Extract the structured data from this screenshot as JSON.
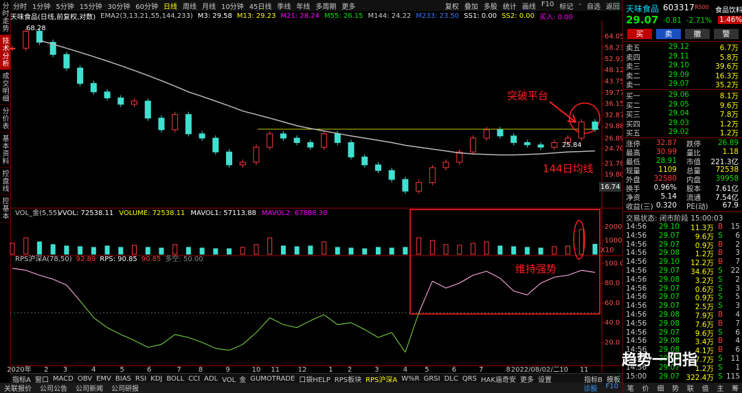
{
  "left_tabs": {
    "items": [
      "分时走势",
      "技术分析",
      "成交明细",
      "分价表",
      "基本资料",
      "控盘线",
      "控基本"
    ],
    "active": 1
  },
  "toolbar": {
    "periods": [
      "分时",
      "1分钟",
      "5分钟",
      "15分钟",
      "30分钟",
      "60分钟",
      "日线",
      "周线",
      "月线",
      "10分钟",
      "45日线",
      "季线",
      "年线",
      "多周期",
      "更多"
    ],
    "active": 6,
    "tools": [
      "复权",
      "叠加",
      "多股",
      "统计",
      "画线",
      "F10",
      "标记",
      "-",
      "自选",
      "返回"
    ]
  },
  "chart_data": [
    {
      "type": "candlestick",
      "title": "天味食品(日线,前复权,对数)",
      "subtitle": "EMA2(3,13,21,55,144,233)",
      "legend_items": [
        {
          "text": "M3: 29.58",
          "color": "#ffffff"
        },
        {
          "text": "M13: 29.23",
          "color": "#ffff00"
        },
        {
          "text": "M21: 28.24",
          "color": "#ff00ff"
        },
        {
          "text": "M55: 26.15",
          "color": "#00e600"
        },
        {
          "text": "M144: 24.22",
          "color": "#cccccc"
        },
        {
          "text": "M233: 23.50",
          "color": "#3c78ff"
        },
        {
          "text": "SS1: 0.00",
          "color": "#ffffff"
        },
        {
          "text": "SS2: 0.00",
          "color": "#ffff00"
        },
        {
          "text": "买入: 0.00",
          "color": "#ff00ff"
        }
      ],
      "x": [
        0,
        1,
        2,
        3,
        4,
        5,
        6,
        7,
        8,
        9,
        10,
        11,
        12,
        13,
        14,
        15,
        16,
        17,
        18,
        19,
        20,
        21,
        22,
        23,
        24,
        25,
        26,
        27,
        28,
        29,
        30,
        31,
        32,
        33,
        34,
        35,
        36,
        37,
        38,
        39,
        40,
        41,
        42,
        43
      ],
      "xlim": [
        0,
        43
      ],
      "xticks": [
        {
          "value": 0.5,
          "label": "2020年"
        },
        {
          "value": 2.5,
          "label": "2"
        },
        {
          "value": 3.9,
          "label": "3"
        },
        {
          "value": 6,
          "label": "4"
        },
        {
          "value": 8.1,
          "label": "5"
        },
        {
          "value": 10.1,
          "label": "6"
        },
        {
          "value": 12.3,
          "label": "7"
        },
        {
          "value": 13.9,
          "label": "8"
        },
        {
          "value": 15.9,
          "label": "9"
        },
        {
          "value": 18,
          "label": "10"
        },
        {
          "value": 19.4,
          "label": "11"
        },
        {
          "value": 21.4,
          "label": "12"
        },
        {
          "value": 23.5,
          "label": "1"
        },
        {
          "value": 24.9,
          "label": "2"
        },
        {
          "value": 26.9,
          "label": "3"
        },
        {
          "value": 29,
          "label": "4"
        },
        {
          "value": 30.6,
          "label": "5"
        },
        {
          "value": 32.6,
          "label": "6"
        },
        {
          "value": 34.6,
          "label": "7"
        },
        {
          "value": 36.6,
          "label": "8"
        },
        {
          "value": 38.6,
          "label": "2022/08/02/二"
        },
        {
          "value": 40.7,
          "label": "10"
        },
        {
          "value": 42.2,
          "label": "11"
        }
      ],
      "ylim": [
        15.5,
        70
      ],
      "log_scale": true,
      "yticks": [
        64.05,
        58.23,
        52.93,
        48.12,
        43.75,
        39.77,
        36.15,
        32.87,
        29.88,
        26.89,
        {
          "value": 24.7,
          "label": "24.70"
        },
        21.78,
        {
          "value": 19.8,
          "label": "19.80"
        }
      ],
      "up_color": "#ff3c3c",
      "down_color": "#40e0d0",
      "series": [
        {
          "values": [
            58,
            67,
            61,
            55,
            49,
            43,
            40,
            38,
            36,
            37,
            32,
            29,
            33,
            28,
            27,
            24,
            21.5,
            22,
            25,
            28,
            27,
            26,
            25,
            28,
            26,
            23,
            21.5,
            20.5,
            19,
            17.2,
            18.5,
            21,
            22,
            24,
            27,
            29,
            27.5,
            26,
            25.5,
            25,
            26,
            27,
            31,
            29.07
          ]
        },
        {
          "values": [
            null,
            null,
            62,
            60,
            58,
            56,
            54,
            52,
            50,
            48,
            46,
            44,
            42,
            40,
            38.5,
            37,
            35.5,
            34,
            33,
            32,
            31,
            30,
            29.3,
            28.7,
            28.1,
            27.5,
            27,
            26.5,
            26,
            25.4,
            25,
            24.6,
            24.2,
            23.8,
            23.6,
            23.5,
            23.4,
            23.4,
            23.5,
            23.6,
            23.8,
            24,
            24.1,
            24.22
          ],
          "color": "#bbbbbb"
        }
      ],
      "price_labels": [
        68.28,
        25.84,
        16.74
      ],
      "annotations": [
        "突破平台",
        "144日均线",
        "维持强势"
      ]
    },
    {
      "type": "bar",
      "title": "VOL_金(5,55)",
      "legend_items": [
        {
          "text": "VVOL: 72538.11",
          "color": "#ffffff"
        },
        {
          "text": "VOLUME: 72538.11",
          "color": "#ffff00"
        },
        {
          "text": "MAVOL1: 57113.88",
          "color": "#ffffff"
        },
        {
          "text": "MAVOL2: 67888.30",
          "color": "#ff00ff"
        }
      ],
      "values": [
        8000,
        12000,
        9000,
        7000,
        6000,
        5500,
        5000,
        6000,
        5000,
        6500,
        5000,
        4500,
        7000,
        5000,
        4500,
        4000,
        4000,
        5000,
        7000,
        12000,
        6000,
        5500,
        6000,
        9000,
        5000,
        4500,
        4000,
        5000,
        4500,
        5000,
        12000,
        10000,
        7000,
        6500,
        8000,
        9000,
        6000,
        5500,
        5000,
        4500,
        5500,
        6000,
        18000,
        7254
      ],
      "ylim": [
        0,
        26000
      ],
      "yticks": [
        10000,
        20000
      ],
      "unit_label": "X10"
    },
    {
      "type": "line",
      "title": "RPS沪深A(78,50)",
      "legend_items": [
        {
          "text": "92.89",
          "color": "#ff3c3c"
        },
        {
          "text": "RPS: 90.85",
          "color": "#ffffff"
        },
        {
          "text": "90.85",
          "color": "#ff3c3c"
        },
        {
          "text": "多空: 50.00",
          "color": "#888888"
        }
      ],
      "values": [
        95,
        93,
        88,
        84,
        78,
        62,
        45,
        35,
        28,
        22,
        15,
        18,
        28,
        25,
        20,
        14,
        12,
        18,
        30,
        45,
        38,
        35,
        42,
        48,
        38,
        40,
        33,
        25,
        30,
        10,
        50,
        82,
        75,
        80,
        88,
        92,
        85,
        72,
        68,
        80,
        86,
        88,
        93,
        90.85
      ],
      "threshold": 50,
      "color_above": "#f0a0d0",
      "color_below": "#6cc040",
      "ylim": [
        -2,
        103
      ],
      "yticks": [
        {
          "value": 20,
          "label": "20.0"
        },
        {
          "value": 40,
          "label": "40.0"
        },
        {
          "value": 60,
          "label": "60.0"
        },
        {
          "value": 80,
          "label": "80.0"
        },
        {
          "value": 100,
          "label": "100.0"
        }
      ]
    }
  ],
  "bottom_tabs": {
    "items": [
      "指标A",
      "窗口",
      "MACD",
      "OBV",
      "EMV",
      "BIAS",
      "RSI",
      "KDJ",
      "BOLL",
      "CCI",
      "ADL",
      "VOL_金",
      "GUMOTRADE",
      "口袋HELP",
      "RPS板块",
      "RPS沪深A",
      "W%R",
      "GRSI",
      "DLC",
      "QRS",
      "HAK庙奇安",
      "更多",
      "设置"
    ],
    "active": 15,
    "right": [
      "指标B",
      "模板"
    ]
  },
  "status_bar": {
    "left": [
      "关联报价",
      "公司公告",
      "公司新闻",
      "公司研报"
    ],
    "right": [
      "诊股",
      "F10"
    ]
  },
  "watermark": "趋势一阳指",
  "quote": {
    "name": "天味食品",
    "code": "603317",
    "tag": "R500",
    "industry": "食品饮料",
    "price": "29.07",
    "change": "-0.81",
    "change_pct": "-2.71%",
    "side_pct": "1.46%",
    "buttons": [
      "买",
      "卖",
      "撤",
      "警"
    ],
    "asks": [
      [
        "卖五",
        "29.12",
        "6.7万"
      ],
      [
        "卖四",
        "29.11",
        "5.8万"
      ],
      [
        "卖三",
        "29.10",
        "39.6万"
      ],
      [
        "卖二",
        "29.09",
        "16.3万"
      ],
      [
        "卖一",
        "29.07",
        "35.2万"
      ]
    ],
    "bids": [
      [
        "买一",
        "29.06",
        "8.1万"
      ],
      [
        "买二",
        "29.05",
        "9.6万"
      ],
      [
        "买三",
        "29.04",
        "7.8万"
      ],
      [
        "买四",
        "29.03",
        "1.2万"
      ],
      [
        "买五",
        "29.02",
        "1.2万"
      ]
    ],
    "stats": [
      [
        "涨停",
        "32.87",
        "跌停",
        "26.89"
      ],
      [
        "最高",
        "30.99",
        "量比",
        "1.18"
      ],
      [
        "最低",
        "28.91",
        "市值",
        "221.3亿"
      ],
      [
        "现量",
        "1109",
        "总量",
        "72538"
      ],
      [
        "外盘",
        "32580",
        "内盘",
        "39958"
      ],
      [
        "换手",
        "0.96%",
        "股本",
        "7.61亿"
      ],
      [
        "净资",
        "5.14",
        "流通",
        "7.54亿"
      ],
      [
        "收益(三)",
        "0.320",
        "PE(动)",
        "67.9"
      ]
    ],
    "stat_colors": [
      [
        "#ff3c3c",
        "#00e600"
      ],
      [
        "#ff3c3c",
        "#ffff00"
      ],
      [
        "#00e600",
        "#ffffff"
      ],
      [
        "#ffff00",
        "#ffff00"
      ],
      [
        "#ff3c3c",
        "#00e600"
      ],
      [
        "#ffffff",
        "#ffffff"
      ],
      [
        "#ffffff",
        "#ffffff"
      ],
      [
        "#ffffff",
        "#ffffff"
      ]
    ],
    "trade_status": "交易状态: 闭市阶段 15:00:03",
    "trades": [
      [
        "14:56",
        "29.10",
        "11.3万",
        "B",
        "15"
      ],
      [
        "14:56",
        "29.07",
        "9.6万",
        "S",
        "6"
      ],
      [
        "14:56",
        "29.07",
        "0.9万",
        "B",
        "2"
      ],
      [
        "14:56",
        "29.08",
        "1.2万",
        "B",
        "3"
      ],
      [
        "14:56",
        "29.10",
        "12.2万",
        "B",
        "7"
      ],
      [
        "14:56",
        "29.07",
        "34.6万",
        "S",
        "22"
      ],
      [
        "14:56",
        "29.08",
        "3.2万",
        "S",
        "2"
      ],
      [
        "14:56",
        "29.07",
        "0.6万",
        "S",
        "3"
      ],
      [
        "14:56",
        "29.07",
        "0.9万",
        "S",
        "5"
      ],
      [
        "14:56",
        "29.07",
        "2.5万",
        "S",
        "3"
      ],
      [
        "14:56",
        "29.08",
        "7.9万",
        "B",
        "4"
      ],
      [
        "14:56",
        "29.08",
        "7.6万",
        "B",
        "7"
      ],
      [
        "14:56",
        "29.07",
        "9.6万",
        "S",
        "6"
      ],
      [
        "14:56",
        "29.08",
        "3.4万",
        "B",
        "4"
      ],
      [
        "14:56",
        "29.08",
        "4.1万",
        "B",
        "6"
      ],
      [
        "14:56",
        "29.07",
        "7.7万",
        "S",
        "11"
      ],
      [
        "14:56",
        "29.07",
        "1.2万",
        "S",
        "1"
      ],
      [
        "15:00",
        "29.07",
        "322.4万",
        "S",
        "115"
      ]
    ],
    "side_colors": {
      "B": "#ff3c3c",
      "S": "#00e600"
    },
    "tabs": [
      "笔",
      "价",
      "细",
      "势",
      "联",
      "值",
      "主",
      "筹"
    ]
  }
}
